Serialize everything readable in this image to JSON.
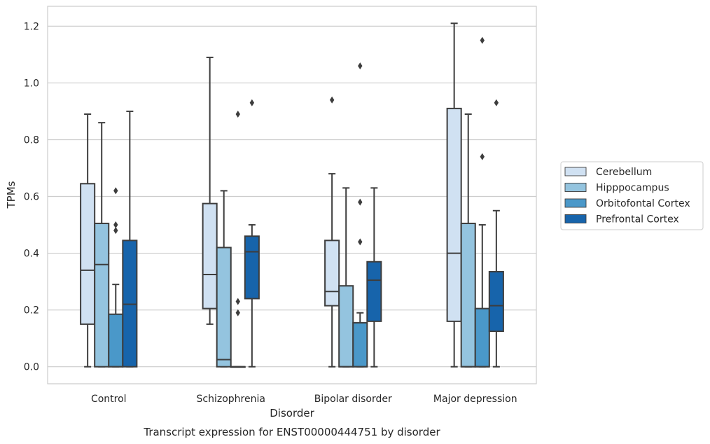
{
  "chart_data": {
    "type": "box",
    "caption": "Transcript expression for ENST00000444751 by disorder",
    "xlabel": "Disorder",
    "ylabel": "TPMs",
    "ylim": [
      -0.06,
      1.27
    ],
    "yticks": [
      0.0,
      0.2,
      0.4,
      0.6,
      0.8,
      1.0,
      1.2
    ],
    "ytick_labels": [
      "0.0",
      "0.2",
      "0.4",
      "0.6",
      "0.8",
      "1.0",
      "1.2"
    ],
    "categories": [
      "Control",
      "Schizophrenia",
      "Bipolar disorder",
      "Major depression"
    ],
    "grid": "horizontal",
    "legend_position": "right",
    "series": [
      {
        "name": "Cerebellum",
        "color": "#d0e1f2",
        "boxes": [
          {
            "whisker_low": 0.0,
            "q1": 0.15,
            "median": 0.34,
            "q3": 0.645,
            "whisker_high": 0.89,
            "outliers": []
          },
          {
            "whisker_low": 0.15,
            "q1": 0.205,
            "median": 0.325,
            "q3": 0.575,
            "whisker_high": 1.09,
            "outliers": []
          },
          {
            "whisker_low": 0.0,
            "q1": 0.215,
            "median": 0.265,
            "q3": 0.445,
            "whisker_high": 0.68,
            "outliers": [
              0.94
            ]
          },
          {
            "whisker_low": 0.0,
            "q1": 0.16,
            "median": 0.4,
            "q3": 0.91,
            "whisker_high": 1.21,
            "outliers": []
          }
        ]
      },
      {
        "name": "Hipppocampus",
        "color": "#94c4df",
        "boxes": [
          {
            "whisker_low": 0.0,
            "q1": 0.0,
            "median": 0.36,
            "q3": 0.505,
            "whisker_high": 0.86,
            "outliers": []
          },
          {
            "whisker_low": 0.0,
            "q1": 0.0,
            "median": 0.025,
            "q3": 0.42,
            "whisker_high": 0.62,
            "outliers": []
          },
          {
            "whisker_low": 0.0,
            "q1": 0.0,
            "median": 0.0,
            "q3": 0.285,
            "whisker_high": 0.63,
            "outliers": []
          },
          {
            "whisker_low": 0.0,
            "q1": 0.0,
            "median": 0.0,
            "q3": 0.505,
            "whisker_high": 0.89,
            "outliers": []
          }
        ]
      },
      {
        "name": "Orbitofontal Cortex",
        "color": "#4a98c9",
        "boxes": [
          {
            "whisker_low": 0.0,
            "q1": 0.0,
            "median": 0.0,
            "q3": 0.185,
            "whisker_high": 0.29,
            "outliers": [
              0.48,
              0.5,
              0.62
            ]
          },
          {
            "whisker_low": 0.0,
            "q1": 0.0,
            "median": 0.0,
            "q3": 0.0,
            "whisker_high": 0.0,
            "outliers": [
              0.19,
              0.23,
              0.89
            ]
          },
          {
            "whisker_low": 0.0,
            "q1": 0.0,
            "median": 0.0,
            "q3": 0.155,
            "whisker_high": 0.19,
            "outliers": [
              0.44,
              0.58,
              1.06
            ]
          },
          {
            "whisker_low": 0.0,
            "q1": 0.0,
            "median": 0.0,
            "q3": 0.205,
            "whisker_high": 0.5,
            "outliers": [
              0.74,
              1.15
            ]
          }
        ]
      },
      {
        "name": "Prefrontal Cortex",
        "color": "#1764ab",
        "boxes": [
          {
            "whisker_low": 0.0,
            "q1": 0.0,
            "median": 0.22,
            "q3": 0.445,
            "whisker_high": 0.9,
            "outliers": []
          },
          {
            "whisker_low": 0.0,
            "q1": 0.24,
            "median": 0.405,
            "q3": 0.46,
            "whisker_high": 0.5,
            "outliers": [
              0.93
            ]
          },
          {
            "whisker_low": 0.0,
            "q1": 0.16,
            "median": 0.305,
            "q3": 0.37,
            "whisker_high": 0.63,
            "outliers": []
          },
          {
            "whisker_low": 0.0,
            "q1": 0.125,
            "median": 0.215,
            "q3": 0.335,
            "whisker_high": 0.55,
            "outliers": [
              0.93
            ]
          }
        ]
      }
    ]
  }
}
